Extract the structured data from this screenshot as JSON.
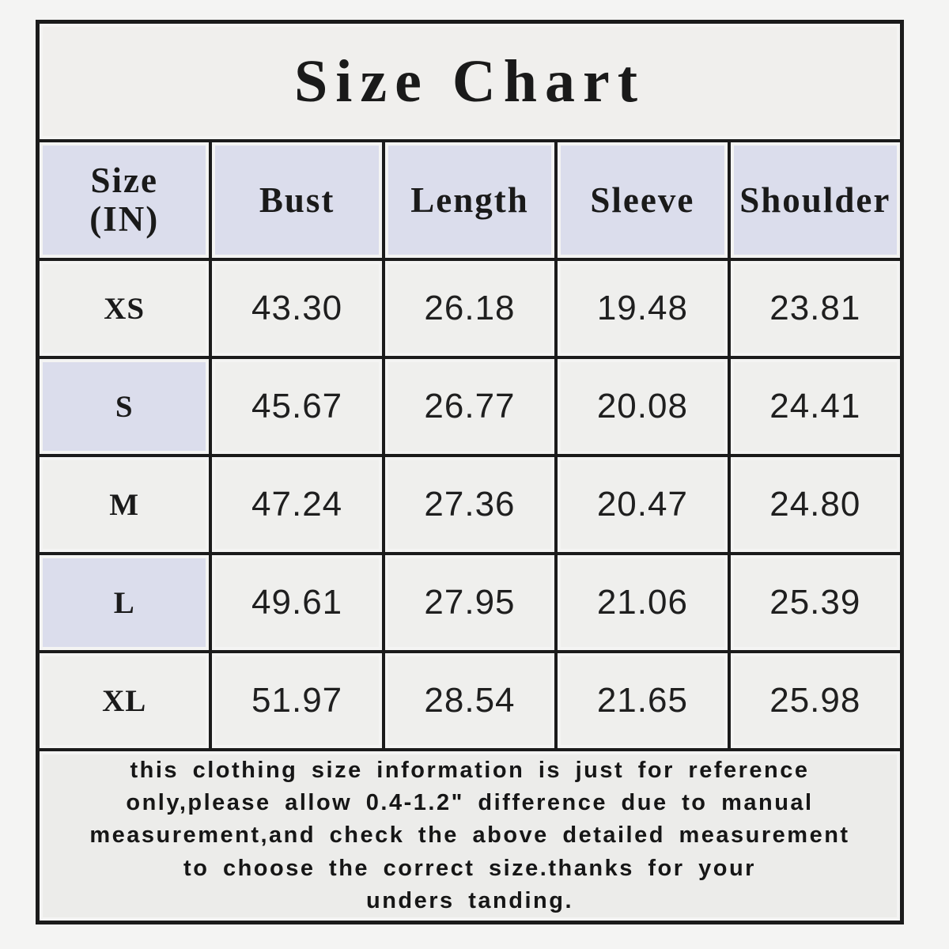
{
  "colors": {
    "page_bg": "#f4f4f3",
    "border": "#1b1b1b",
    "title_bg": "#f0efed",
    "header_bg": "#dbddec",
    "row_bg": "#efefed",
    "highlight_bg": "#dbddec",
    "footer_bg": "#ececea",
    "text": "#1a1a1a"
  },
  "chart_data": {
    "type": "table",
    "title": "Size Chart",
    "columns": {
      "size": "Size\n(IN)",
      "bust": "Bust",
      "length": "Length",
      "sleeve": "Sleeve",
      "shoulder": "Shoulder"
    },
    "rows": [
      {
        "size": "XS",
        "bust": "43.30",
        "length": "26.18",
        "sleeve": "19.48",
        "shoulder": "23.81",
        "highlight": false
      },
      {
        "size": "S",
        "bust": "45.67",
        "length": "26.77",
        "sleeve": "20.08",
        "shoulder": "24.41",
        "highlight": true
      },
      {
        "size": "M",
        "bust": "47.24",
        "length": "27.36",
        "sleeve": "20.47",
        "shoulder": "24.80",
        "highlight": false
      },
      {
        "size": "L",
        "bust": "49.61",
        "length": "27.95",
        "sleeve": "21.06",
        "shoulder": "25.39",
        "highlight": true
      },
      {
        "size": "XL",
        "bust": "51.97",
        "length": "28.54",
        "sleeve": "21.65",
        "shoulder": "25.98",
        "highlight": false
      }
    ],
    "note_lines": [
      "this clothing size information is just for reference",
      "only,please allow 0.4-1.2\" difference due to manual",
      "measurement,and check the above detailed measurement",
      "to choose the correct size.thanks for your",
      "unders tanding."
    ]
  }
}
